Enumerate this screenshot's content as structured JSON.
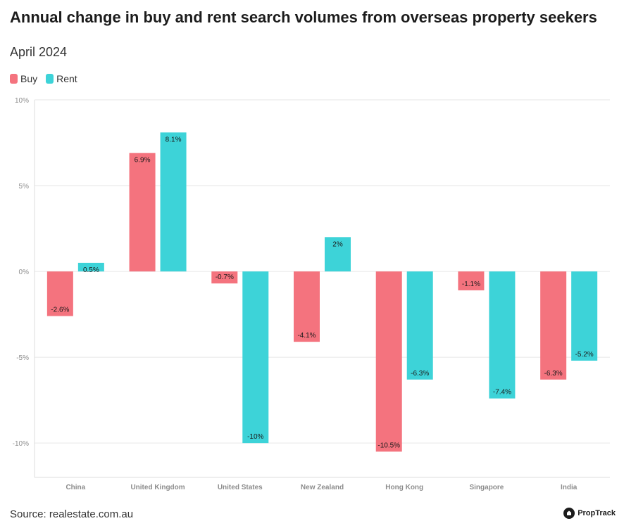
{
  "header": {
    "title": "Annual change in buy and rent search volumes from overseas property seekers",
    "subtitle": "April 2024"
  },
  "footer": {
    "source": "Source: realestate.com.au",
    "brand": "PropTrack",
    "brand_icon": "proptrack-logo-icon"
  },
  "colors": {
    "buy": "#f4737e",
    "rent": "#3dd3d8",
    "grid": "#e6e6e6",
    "axis_text": "#8c8c8c"
  },
  "chart_data": {
    "type": "bar",
    "title": "Annual change in buy and rent search volumes from overseas property seekers",
    "subtitle": "April 2024",
    "xlabel": "",
    "ylabel": "",
    "ylim": [
      -12,
      10
    ],
    "yticks": [
      10,
      5,
      0,
      -5,
      -10
    ],
    "ytick_labels": [
      "10%",
      "5%",
      "0%",
      "-5%",
      "-10%"
    ],
    "grid": true,
    "legend": "top-left",
    "categories": [
      "China",
      "United Kingdom",
      "United States",
      "New Zealand",
      "Hong Kong",
      "Singapore",
      "India"
    ],
    "series": [
      {
        "name": "Buy",
        "values": [
          -2.6,
          6.9,
          -0.7,
          -4.1,
          -10.5,
          -1.1,
          -6.3
        ],
        "labels": [
          "-2.6%",
          "6.9%",
          "-0.7%",
          "-4.1%",
          "-10.5%",
          "-1.1%",
          "-6.3%"
        ]
      },
      {
        "name": "Rent",
        "values": [
          0.5,
          8.1,
          -10,
          2,
          -6.3,
          -7.4,
          -5.2
        ],
        "labels": [
          "0.5%",
          "8.1%",
          "-10%",
          "2%",
          "-6.3%",
          "-7.4%",
          "-5.2%"
        ]
      }
    ]
  }
}
